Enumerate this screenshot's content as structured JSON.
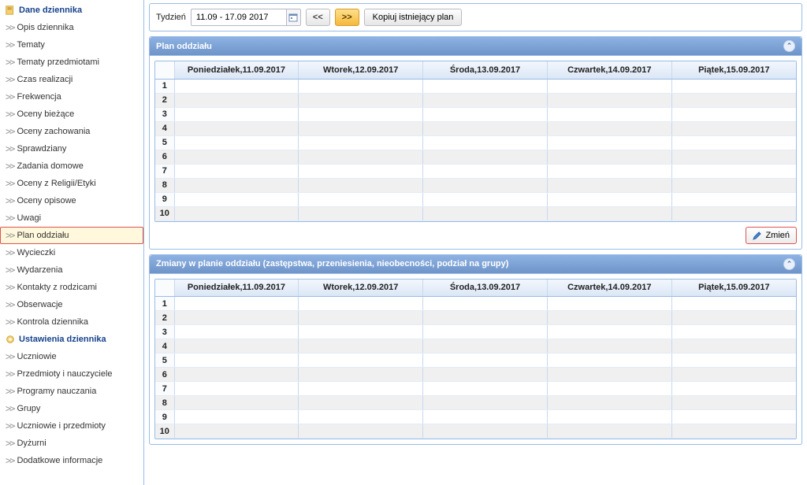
{
  "sidebar": {
    "section1": {
      "title": "Dane dziennika",
      "items": [
        "Opis dziennika",
        "Tematy",
        "Tematy przedmiotami",
        "Czas realizacji",
        "Frekwencja",
        "Oceny bieżące",
        "Oceny zachowania",
        "Sprawdziany",
        "Zadania domowe",
        "Oceny z Religii/Etyki",
        "Oceny opisowe",
        "Uwagi",
        "Plan oddziału",
        "Wycieczki",
        "Wydarzenia",
        "Kontakty z rodzicami",
        "Obserwacje",
        "Kontrola dziennika"
      ],
      "selectedIndex": 12
    },
    "section2": {
      "title": "Ustawienia dziennika",
      "items": [
        "Uczniowie",
        "Przedmioty i nauczyciele",
        "Programy nauczania",
        "Grupy",
        "Uczniowie i przedmioty",
        "Dyżurni",
        "Dodatkowe informacje"
      ]
    }
  },
  "toolbar": {
    "week_label": "Tydzień",
    "date_value": "11.09 - 17.09 2017",
    "prev_label": "<<",
    "next_label": ">>",
    "copy_label": "Kopiuj istniejący plan"
  },
  "panel1": {
    "title": "Plan oddziału",
    "days": [
      "Poniedziałek,11.09.2017",
      "Wtorek,12.09.2017",
      "Środa,13.09.2017",
      "Czwartek,14.09.2017",
      "Piątek,15.09.2017"
    ],
    "rows": [
      "1",
      "2",
      "3",
      "4",
      "5",
      "6",
      "7",
      "8",
      "9",
      "10"
    ],
    "edit_label": "Zmień"
  },
  "panel2": {
    "title": "Zmiany w planie oddziału (zastępstwa, przeniesienia, nieobecności, podział na grupy)",
    "days": [
      "Poniedziałek,11.09.2017",
      "Wtorek,12.09.2017",
      "Środa,13.09.2017",
      "Czwartek,14.09.2017",
      "Piątek,15.09.2017"
    ],
    "rows": [
      "1",
      "2",
      "3",
      "4",
      "5",
      "6",
      "7",
      "8",
      "9",
      "10"
    ]
  },
  "colors": {
    "panel_border": "#99bce8",
    "header_grad_a": "#8db2e3",
    "header_grad_b": "#6f94c8",
    "selected_bg": "#fff8dc",
    "selected_border": "#e05252",
    "alt_row": "#f0f0f0"
  }
}
